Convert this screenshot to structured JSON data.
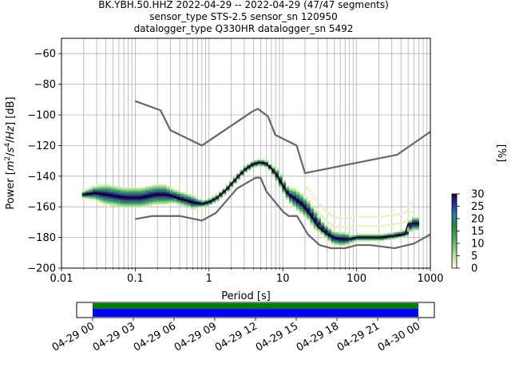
{
  "window": {
    "title_lines": [
      "BK.YBH.50.HHZ   2022-04-29 -- 2022-04-29  (47/47 segments)",
      "sensor_type STS-2.5 sensor_sn 120950",
      "datalogger_type Q330HR datalogger_sn 5492"
    ]
  },
  "chart_data": [
    {
      "type": "heatmap",
      "title": "BK.YBH.50.HHZ   2022-04-29 -- 2022-04-29  (47/47 segments)",
      "xlabel": "Period [s]",
      "ylabel": "Power [m²/s⁴/Hz] [dB]",
      "xscale": "log",
      "xlim": [
        0.01,
        1000
      ],
      "ylim": [
        -200,
        -50
      ],
      "x_ticks": [
        0.01,
        0.1,
        1,
        10,
        100,
        1000
      ],
      "x_tick_labels": [
        "0.01",
        "0.1",
        "1",
        "10",
        "100",
        "1000"
      ],
      "y_ticks": [
        -200,
        -180,
        -160,
        -140,
        -120,
        -100,
        -80,
        -60
      ],
      "y_tick_labels": [
        "−200",
        "−180",
        "−160",
        "−140",
        "−120",
        "−100",
        "−80",
        "−60"
      ],
      "grid": true,
      "colorbar": {
        "label": "[%]",
        "range": [
          0,
          30
        ],
        "ticks": [
          0,
          5,
          10,
          15,
          20,
          25,
          30
        ],
        "tick_labels": [
          "0",
          "5",
          "10",
          "15",
          "20",
          "25",
          "30"
        ],
        "colors": [
          "#ffffe5",
          "#c2e699",
          "#78c679",
          "#41ab5d",
          "#238443",
          "#2c7fb8",
          "#253494",
          "#2d004b"
        ]
      },
      "series": [
        {
          "name": "mode",
          "color": "#000000",
          "x": [
            0.019,
            0.03,
            0.05,
            0.08,
            0.12,
            0.2,
            0.28,
            0.4,
            0.6,
            0.8,
            1.0,
            1.3,
            1.7,
            2.2,
            3.0,
            4.0,
            5.0,
            6.0,
            7.0,
            8.5,
            10,
            12,
            15,
            18,
            20,
            25,
            30,
            40,
            50,
            60,
            80,
            100,
            200,
            350,
            450,
            500,
            700
          ],
          "y": [
            -152,
            -151,
            -153,
            -154,
            -154,
            -152,
            -152,
            -155,
            -157,
            -158,
            -157,
            -154,
            -149,
            -143,
            -136,
            -132,
            -131,
            -132,
            -135,
            -140,
            -146,
            -152,
            -155,
            -158,
            -161,
            -167,
            -173,
            -178,
            -180,
            -181,
            -181,
            -180,
            -180,
            -179,
            -178,
            -171,
            -171
          ]
        },
        {
          "name": "high-noise-model",
          "color": "#666666",
          "x": [
            0.1,
            0.22,
            0.3,
            0.8,
            3.8,
            4.6,
            6.3,
            7.9,
            15.4,
            20,
            354.8,
            1000
          ],
          "y": [
            -91,
            -97,
            -110,
            -120,
            -98,
            -96,
            -101,
            -113,
            -120,
            -138,
            -126,
            -111
          ]
        },
        {
          "name": "low-noise-model",
          "color": "#666666",
          "x": [
            0.1,
            0.17,
            0.4,
            0.8,
            1.24,
            2.4,
            4.3,
            5.0,
            6.0,
            10,
            12,
            15.6,
            21.9,
            31.6,
            45,
            70,
            101,
            154,
            328,
            600,
            1000
          ],
          "y": [
            -168,
            -166,
            -166,
            -169,
            -164,
            -148,
            -141,
            -141,
            -150,
            -163,
            -166,
            -166,
            -178,
            -185,
            -187,
            -187,
            -185,
            -185,
            -187,
            -184,
            -178
          ]
        }
      ],
      "psd_density": {
        "x": [
          0.02,
          0.028,
          0.04,
          0.055,
          0.07,
          0.09,
          0.12,
          0.15,
          0.19,
          0.25,
          0.33,
          0.45,
          0.6,
          0.8,
          1.0,
          1.3,
          1.7,
          2.2,
          3.0,
          4.0,
          5.0,
          6.0,
          7.0,
          8.5,
          10,
          12,
          15,
          18,
          22,
          27,
          33,
          40,
          48,
          58,
          70,
          85,
          100,
          130,
          170,
          220,
          300,
          400,
          480,
          550,
          650
        ],
        "center": [
          -152,
          -151,
          -152,
          -153,
          -154,
          -154,
          -154,
          -153,
          -152,
          -152,
          -153,
          -155,
          -157,
          -158,
          -157,
          -154,
          -149,
          -143,
          -136,
          -132,
          -131,
          -132,
          -135,
          -140,
          -146,
          -152,
          -155,
          -158,
          -162,
          -168,
          -173,
          -177,
          -180,
          -181,
          -181,
          -181,
          -180,
          -180,
          -180,
          -180,
          -179,
          -178,
          -177,
          -171,
          -171
        ],
        "spread": [
          1,
          2,
          3,
          3,
          3,
          3,
          3,
          3,
          3,
          3,
          2,
          2,
          2,
          1,
          1,
          1,
          1,
          1,
          1,
          1,
          1,
          1,
          1,
          2,
          2,
          2,
          3,
          3,
          3,
          3,
          2,
          2,
          2,
          2,
          2,
          1,
          1,
          1,
          1,
          1,
          1,
          1,
          1,
          2,
          2
        ]
      }
    },
    {
      "type": "timeline",
      "xlim": [
        "2022-04-29 00:00",
        "2022-04-30 00:00"
      ],
      "x_tick_labels": [
        "04-29 00",
        "04-29 03",
        "04-29 06",
        "04-29 09",
        "04-29 12",
        "04-29 15",
        "04-29 18",
        "04-29 21",
        "04-30 00"
      ],
      "bars": [
        {
          "name": "data-coverage",
          "color": "#008000",
          "start": "2022-04-29 00:00",
          "end": "2022-04-30 00:00"
        },
        {
          "name": "psd-used",
          "color": "#0000ff",
          "start": "2022-04-29 00:00",
          "end": "2022-04-30 00:00"
        }
      ]
    }
  ]
}
